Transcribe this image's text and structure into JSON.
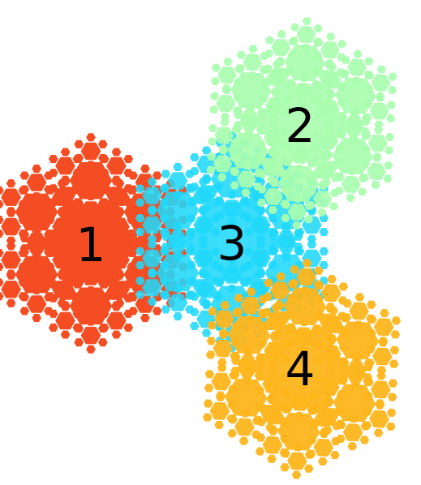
{
  "shapes": [
    {
      "label": "1",
      "color": "#F54D23",
      "opacity": 1.0
    },
    {
      "label": "2",
      "color": "#A9FDAF",
      "opacity": 0.92
    },
    {
      "label": "3",
      "color": "#20D8FA",
      "opacity": 0.88
    },
    {
      "label": "4",
      "color": "#FDB51C",
      "opacity": 0.95
    }
  ]
}
